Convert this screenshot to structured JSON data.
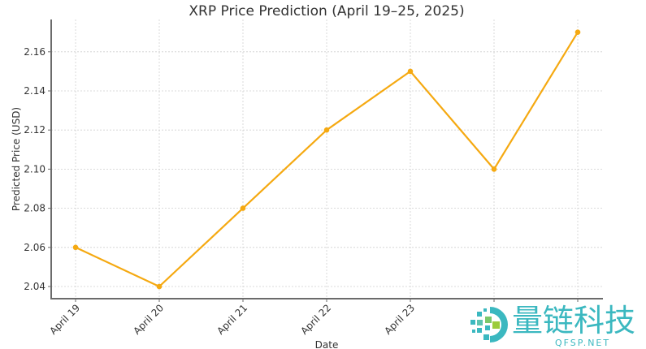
{
  "chart_data": {
    "type": "line",
    "title": "XRP Price Prediction (April 19–25, 2025)",
    "xlabel": "Date",
    "ylabel": "Predicted Price (USD)",
    "categories": [
      "April 19",
      "April 20",
      "April 21",
      "April 22",
      "April 23",
      "April 24",
      "April 25"
    ],
    "visible_x_tick_labels": [
      "April 19",
      "April 20",
      "April 21",
      "April 22",
      "April 23"
    ],
    "series": [
      {
        "name": "Predicted Price",
        "values": [
          2.06,
          2.04,
          2.08,
          2.12,
          2.15,
          2.1,
          2.17
        ],
        "color": "#f5a911",
        "marker": "circle"
      }
    ],
    "yticks": [
      "2.04",
      "2.06",
      "2.08",
      "2.10",
      "2.12",
      "2.14",
      "2.16"
    ],
    "ylim": [
      2.033,
      2.176
    ],
    "grid": true,
    "legend": null
  },
  "watermark": {
    "brand_cn": "量链科技",
    "brand_url": "QFSP.NET",
    "color": "#3bb8c0",
    "accent_color": "#9ccc3c"
  }
}
